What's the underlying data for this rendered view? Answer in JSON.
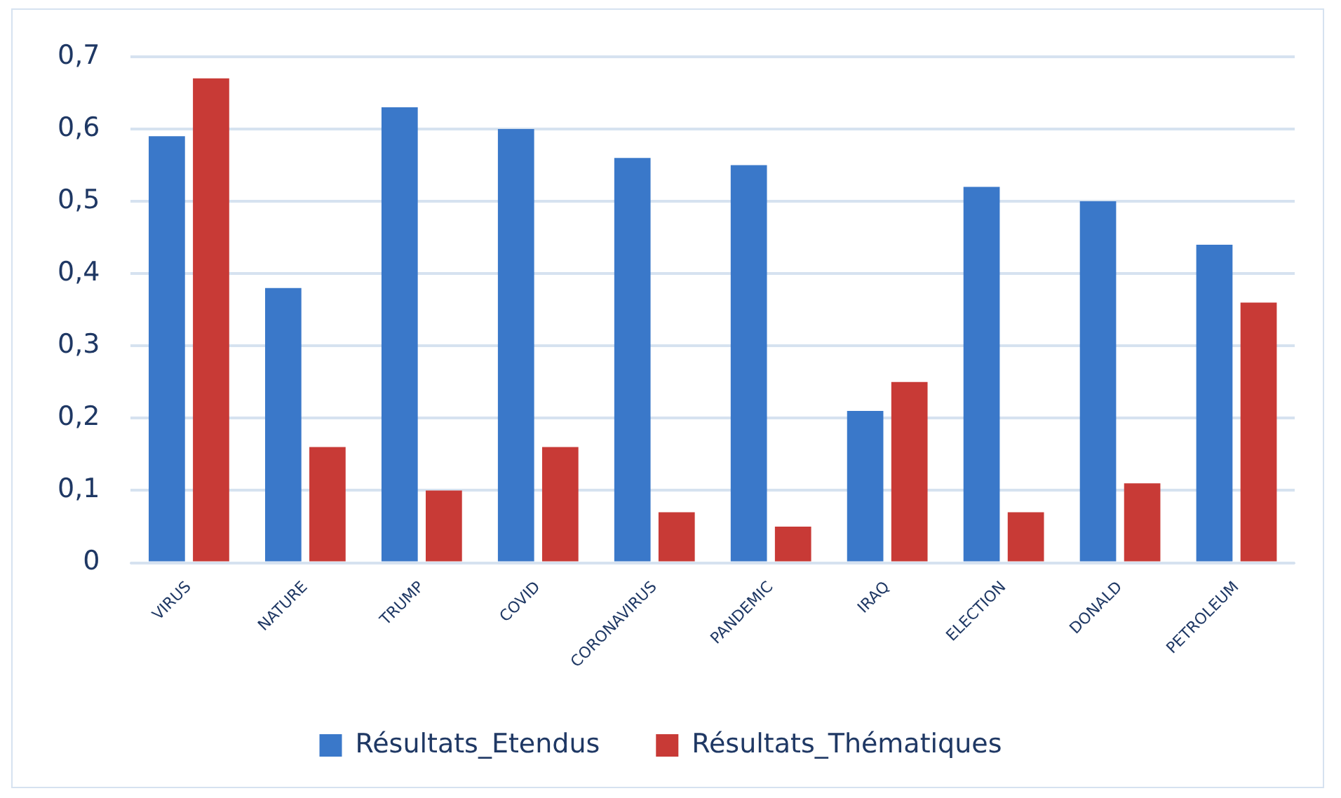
{
  "chart_data": {
    "type": "bar",
    "categories": [
      "VIRUS",
      "NATURE",
      "TRUMP",
      "COVID",
      "CORONAVIRUS",
      "PANDEMIC",
      "IRAQ",
      "ELECTION",
      "DONALD",
      "PETROLEUM"
    ],
    "series": [
      {
        "name": "Résultats_Etendus",
        "color": "#3a78c9",
        "values": [
          0.59,
          0.38,
          0.63,
          0.6,
          0.56,
          0.55,
          0.21,
          0.52,
          0.5,
          0.44
        ]
      },
      {
        "name": "Résultats_Thématiques",
        "color": "#c83a36",
        "values": [
          0.67,
          0.16,
          0.1,
          0.16,
          0.07,
          0.05,
          0.25,
          0.07,
          0.11,
          0.36
        ]
      }
    ],
    "ylim": [
      0,
      0.7
    ],
    "yticks": [
      0,
      {
        "value": 0.1,
        "label": "0,1"
      },
      {
        "value": 0.2,
        "label": "0,2"
      },
      {
        "value": 0.3,
        "label": "0,3"
      },
      {
        "value": 0.4,
        "label": "0,4"
      },
      {
        "value": 0.5,
        "label": "0,5"
      },
      {
        "value": 0.6,
        "label": "0,6"
      },
      {
        "value": 0.7,
        "label": "0,7"
      }
    ],
    "grid": "y",
    "legend": "bottom"
  }
}
